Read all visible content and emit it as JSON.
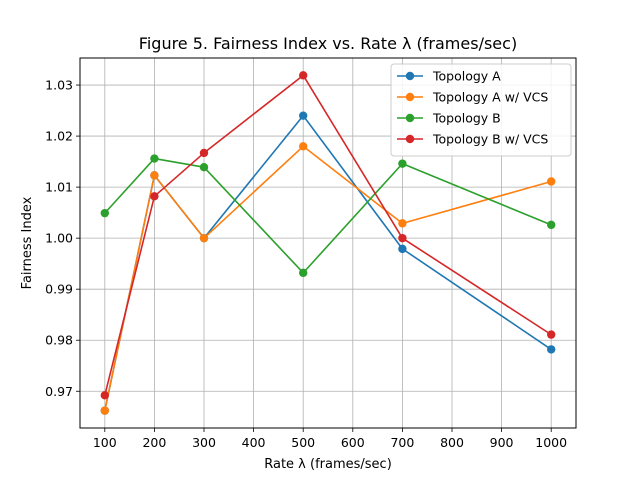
{
  "chart_data": {
    "type": "line",
    "title": "Figure 5. Fairness Index vs. Rate λ (frames/sec)",
    "xlabel": "Rate λ (frames/sec)",
    "ylabel": "Fairness Index",
    "x": [
      100,
      200,
      300,
      500,
      700,
      1000
    ],
    "xlim": [
      50,
      1050
    ],
    "ylim": [
      0.9628,
      1.0353
    ],
    "xticks": [
      100,
      200,
      300,
      400,
      500,
      600,
      700,
      800,
      900,
      1000
    ],
    "yticks": [
      0.97,
      0.98,
      0.99,
      1.0,
      1.01,
      1.02,
      1.03
    ],
    "ytick_labels": [
      "0.97",
      "0.98",
      "0.99",
      "1.00",
      "1.01",
      "1.02",
      "1.03"
    ],
    "grid": true,
    "legend_position": "top-right",
    "series": [
      {
        "name": "Topology A",
        "color": "#1f77b4",
        "values": [
          0.9662,
          1.0123,
          1.0,
          1.024,
          0.9979,
          0.9782
        ]
      },
      {
        "name": "Topology A w/ VCS",
        "color": "#ff7f0e",
        "values": [
          0.9662,
          1.0123,
          1.0,
          1.018,
          1.0029,
          1.0111
        ]
      },
      {
        "name": "Topology B",
        "color": "#2ca02c",
        "values": [
          1.0049,
          1.0156,
          1.0139,
          0.9932,
          1.0146,
          1.0026
        ]
      },
      {
        "name": "Topology B w/ VCS",
        "color": "#d62728",
        "values": [
          0.9692,
          1.0082,
          1.0167,
          1.0319,
          1.0,
          0.9811
        ]
      }
    ]
  }
}
